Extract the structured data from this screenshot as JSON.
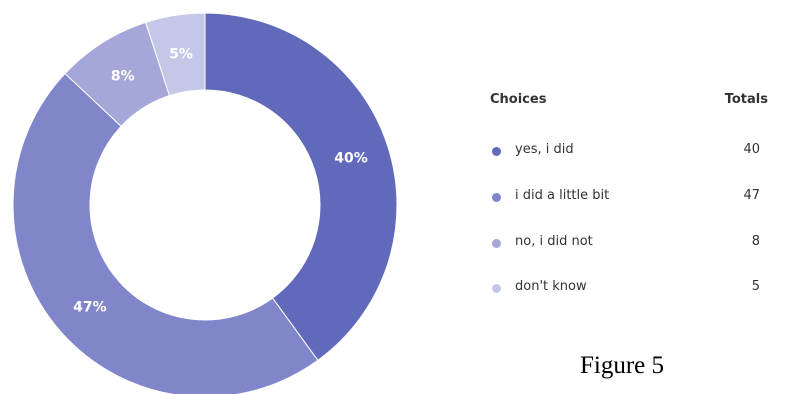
{
  "chart_data": {
    "type": "pie",
    "donut": true,
    "slices": [
      {
        "label": "yes, i did",
        "value": 40,
        "percent_label": "40%",
        "color": "#6169bb"
      },
      {
        "label": "i did a little bit",
        "value": 47,
        "percent_label": "47%",
        "color": "#8086c9"
      },
      {
        "label": "no, i did not",
        "value": 8,
        "percent_label": "8%",
        "color": "#a4a7d8"
      },
      {
        "label": "don't know",
        "value": 5,
        "percent_label": "5%",
        "color": "#c5c7e6"
      }
    ],
    "legend": {
      "position": "right",
      "headers": {
        "choices": "Choices",
        "totals": "Totals"
      }
    }
  },
  "caption": "Figure 5"
}
